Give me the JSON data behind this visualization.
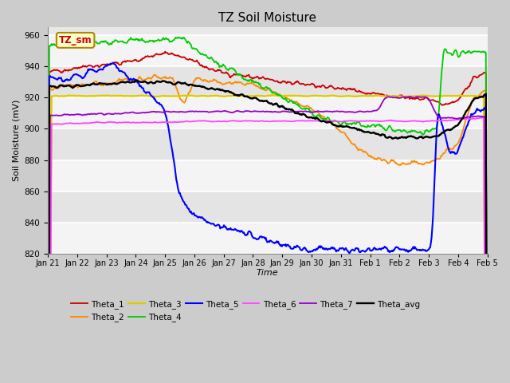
{
  "title": "TZ Soil Moisture",
  "xlabel": "Time",
  "ylabel": "Soil Moisture (mV)",
  "ylim": [
    820,
    965
  ],
  "yticks": [
    820,
    840,
    860,
    880,
    900,
    920,
    940,
    960
  ],
  "legend_label": "TZ_sm",
  "series_colors": {
    "Theta_1": "#cc0000",
    "Theta_2": "#ff8800",
    "Theta_3": "#ddcc00",
    "Theta_4": "#00cc00",
    "Theta_5": "#0000ff",
    "Theta_6": "#ff44ff",
    "Theta_7": "#9900cc",
    "Theta_avg": "#000000"
  },
  "x_tick_labels": [
    "Jan 21",
    "Jan 22",
    "Jan 23",
    "Jan 24",
    "Jan 25",
    "Jan 26",
    "Jan 27",
    "Jan 28",
    "Jan 29",
    "Jan 30",
    "Jan 31",
    "Feb 1",
    "Feb 2",
    "Feb 3",
    "Feb 4",
    "Feb 5"
  ],
  "plot_bg_light": "#f0f0f0",
  "plot_bg_dark": "#e0e0e0",
  "fig_bg": "#cccccc",
  "grid_color": "#ffffff",
  "n_points": 600
}
